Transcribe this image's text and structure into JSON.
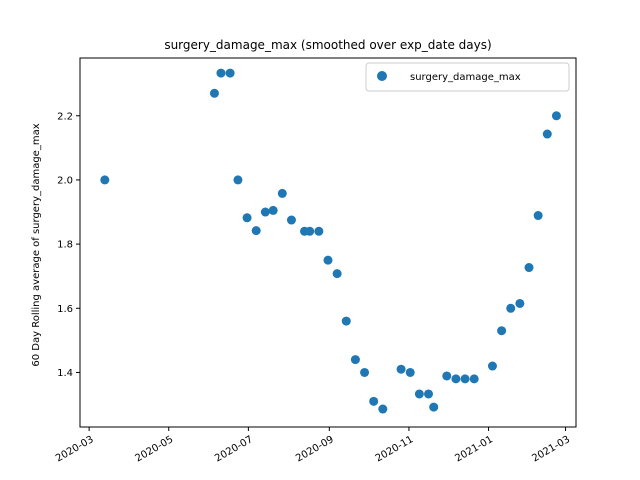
{
  "chart_data": {
    "type": "scatter",
    "title": "surgery_damage_max (smoothed over exp_date days)",
    "xlabel": "",
    "ylabel": "60 Day Rolling average of surgery_damage_max",
    "x_type": "date",
    "xlim": [
      "2020-02-23",
      "2021-03-09"
    ],
    "ylim": [
      1.23,
      2.38
    ],
    "x_ticks": [
      "2020-03",
      "2020-05",
      "2020-07",
      "2020-09",
      "2020-11",
      "2021-01",
      "2021-03"
    ],
    "y_ticks": [
      "1.4",
      "1.6",
      "1.8",
      "2.0",
      "2.2"
    ],
    "grid": false,
    "legend_position": "top-right",
    "color": "#1f77b4",
    "series": [
      {
        "name": "surgery_damage_max",
        "x": [
          "2020-03-13",
          "2020-06-05",
          "2020-06-10",
          "2020-06-17",
          "2020-06-23",
          "2020-06-30",
          "2020-07-07",
          "2020-07-14",
          "2020-07-20",
          "2020-07-27",
          "2020-08-03",
          "2020-08-13",
          "2020-08-17",
          "2020-08-24",
          "2020-08-31",
          "2020-09-07",
          "2020-09-14",
          "2020-09-21",
          "2020-09-28",
          "2020-10-05",
          "2020-10-12",
          "2020-10-26",
          "2020-11-02",
          "2020-11-09",
          "2020-11-16",
          "2020-11-20",
          "2020-11-30",
          "2020-12-07",
          "2020-12-14",
          "2020-12-21",
          "2021-01-04",
          "2021-01-11",
          "2021-01-18",
          "2021-01-25",
          "2021-02-01",
          "2021-02-08",
          "2021-02-15",
          "2021-02-22"
        ],
        "y": [
          2.0,
          2.27,
          2.333,
          2.333,
          2.0,
          1.882,
          1.842,
          1.9,
          1.905,
          1.958,
          1.875,
          1.84,
          1.84,
          1.84,
          1.75,
          1.708,
          1.56,
          1.44,
          1.4,
          1.31,
          1.286,
          1.41,
          1.4,
          1.333,
          1.333,
          1.292,
          1.389,
          1.38,
          1.38,
          1.38,
          1.42,
          1.53,
          1.6,
          1.615,
          1.727,
          1.889,
          2.143,
          2.2
        ]
      }
    ]
  }
}
